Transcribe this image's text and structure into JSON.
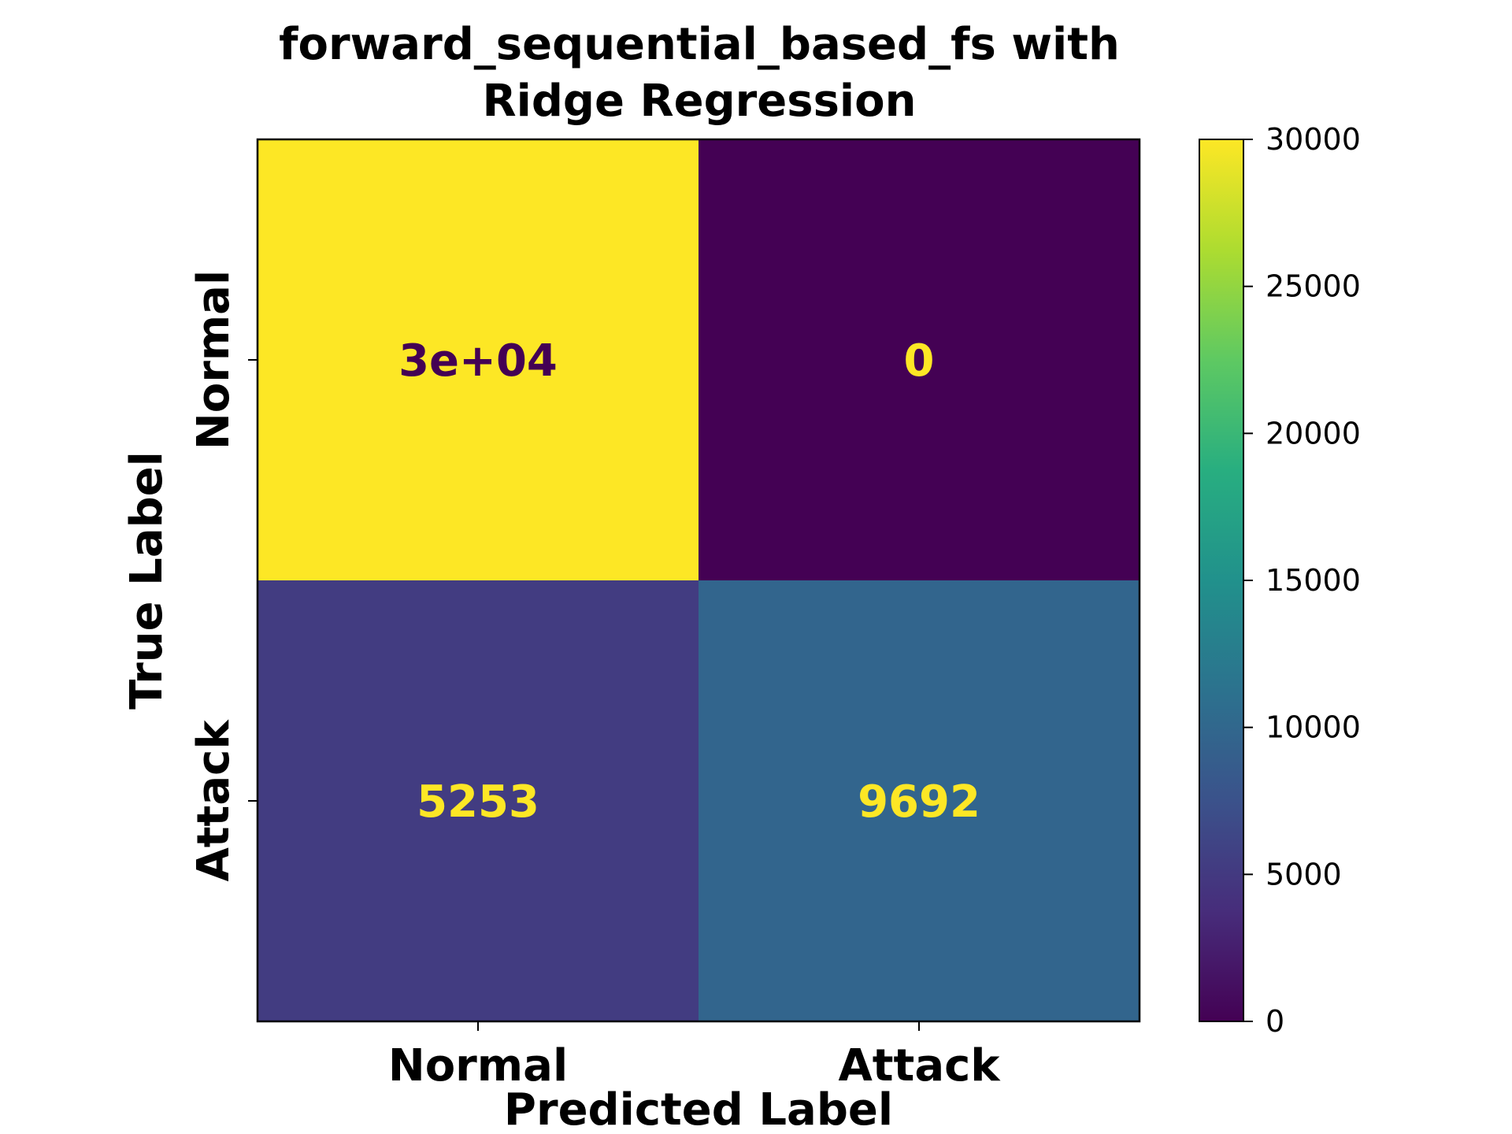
{
  "chart_data": {
    "type": "heatmap",
    "title_lines": [
      "forward_sequential_based_fs with",
      "Ridge Regression"
    ],
    "xlabel": "Predicted Label",
    "ylabel": "True Label",
    "x_categories": [
      "Normal",
      "Attack"
    ],
    "y_categories": [
      "Normal",
      "Attack"
    ],
    "values": [
      [
        30000,
        0
      ],
      [
        5253,
        9692
      ]
    ],
    "cell_labels": [
      [
        "3e+04",
        "0"
      ],
      [
        "5253",
        "9692"
      ]
    ],
    "colormap": "viridis",
    "colorbar": {
      "range": [
        0,
        30000
      ],
      "ticks": [
        0,
        5000,
        10000,
        15000,
        20000,
        25000,
        30000
      ],
      "tick_labels": [
        "0",
        "5000",
        "10000",
        "15000",
        "20000",
        "25000",
        "30000"
      ]
    },
    "grid": false
  }
}
